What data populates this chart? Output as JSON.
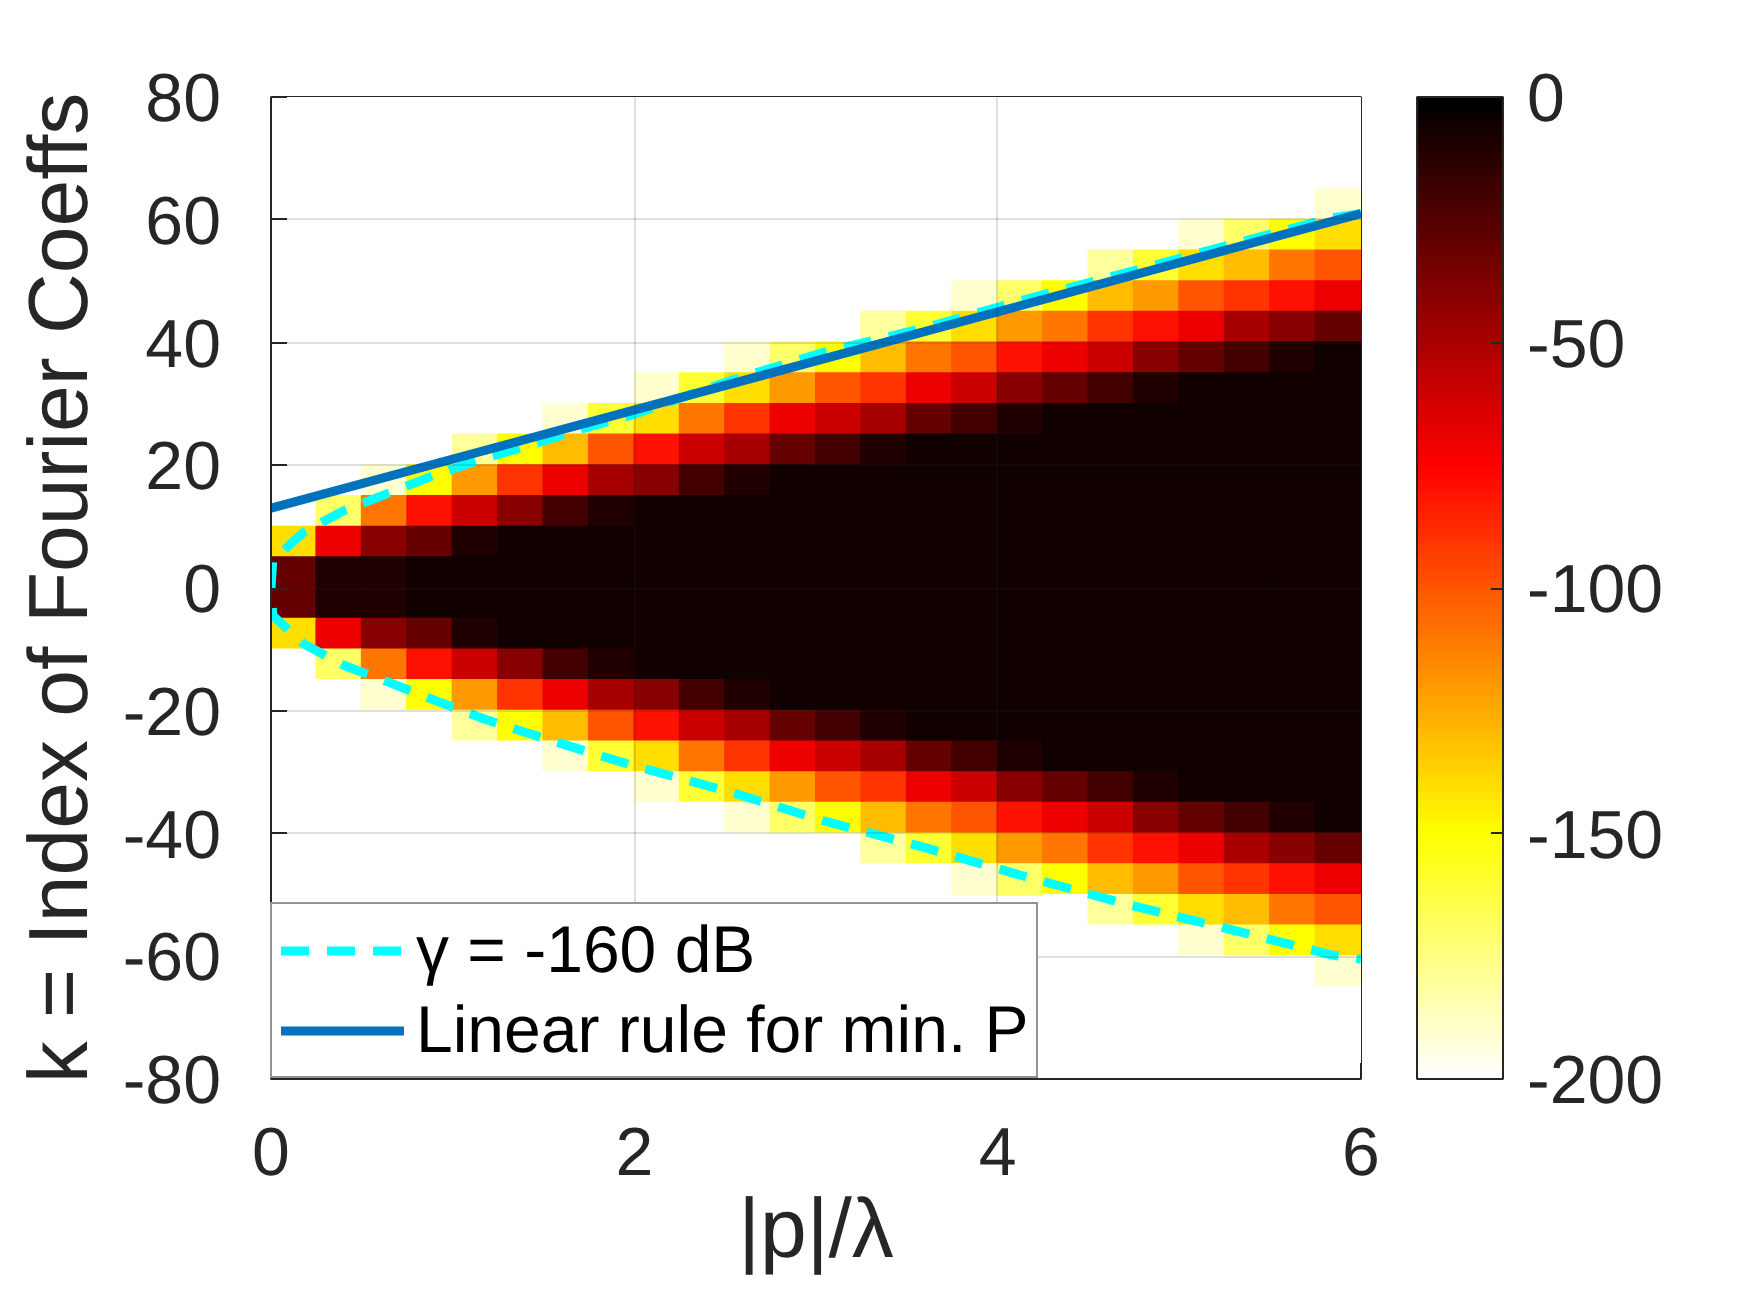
{
  "chart_data": {
    "type": "heatmap",
    "xlabel": "|p|/λ",
    "ylabel": "k = Index of Fourier Coeffs",
    "x": [
      0.125,
      0.375,
      0.625,
      0.875,
      1.125,
      1.375,
      1.625,
      1.875,
      2.125,
      2.375,
      2.625,
      2.875,
      3.125,
      3.375,
      3.625,
      3.875,
      4.125,
      4.375,
      4.625,
      4.875,
      5.125,
      5.375,
      5.625,
      5.875
    ],
    "cells": [
      [
        -200,
        -200,
        -200,
        -200,
        -200,
        -200,
        -200,
        -200,
        -200,
        -200,
        -200,
        -200,
        -200,
        -200,
        -200,
        -200,
        -200,
        -200,
        -200,
        -200,
        -200,
        -200,
        -200,
        -200
      ],
      [
        -200,
        -200,
        -200,
        -200,
        -200,
        -200,
        -200,
        -200,
        -200,
        -200,
        -200,
        -200,
        -200,
        -200,
        -200,
        -200,
        -200,
        -200,
        -200,
        -200,
        -200,
        -200,
        -200,
        -200
      ],
      [
        -200,
        -200,
        -200,
        -200,
        -200,
        -200,
        -200,
        -200,
        -200,
        -200,
        -200,
        -200,
        -200,
        -200,
        -200,
        -200,
        -200,
        -200,
        -200,
        -200,
        -200,
        -200,
        -200,
        -200
      ],
      [
        -200,
        -200,
        -200,
        -200,
        -200,
        -200,
        -200,
        -200,
        -200,
        -200,
        -200,
        -200,
        -200,
        -200,
        -200,
        -200,
        -200,
        -200,
        -200,
        -200,
        -200,
        -200,
        -200,
        -190
      ],
      [
        -200,
        -200,
        -200,
        -200,
        -200,
        -200,
        -200,
        -200,
        -200,
        -200,
        -200,
        -200,
        -200,
        -200,
        -200,
        -200,
        -200,
        -200,
        -200,
        -200,
        -190,
        -170,
        -150,
        -140
      ],
      [
        -200,
        -200,
        -200,
        -200,
        -200,
        -200,
        -200,
        -200,
        -200,
        -200,
        -200,
        -200,
        -200,
        -200,
        -200,
        -200,
        -200,
        -200,
        -180,
        -160,
        -140,
        -130,
        -110,
        -100
      ],
      [
        -200,
        -200,
        -200,
        -200,
        -200,
        -200,
        -200,
        -200,
        -200,
        -200,
        -200,
        -200,
        -200,
        -200,
        -200,
        -190,
        -170,
        -150,
        -130,
        -120,
        -100,
        -90,
        -80,
        -70
      ],
      [
        -200,
        -200,
        -200,
        -200,
        -200,
        -200,
        -200,
        -200,
        -200,
        -200,
        -200,
        -200,
        -200,
        -180,
        -160,
        -140,
        -120,
        -110,
        -90,
        -80,
        -70,
        -50,
        -40,
        -30
      ],
      [
        -200,
        -200,
        -200,
        -200,
        -200,
        -200,
        -200,
        -200,
        -200,
        -200,
        -190,
        -170,
        -150,
        -130,
        -110,
        -100,
        -80,
        -70,
        -60,
        -40,
        -30,
        -20,
        -10,
        -5
      ],
      [
        -200,
        -200,
        -200,
        -200,
        -200,
        -200,
        -200,
        -200,
        -190,
        -160,
        -140,
        -120,
        -100,
        -90,
        -70,
        -60,
        -40,
        -30,
        -20,
        -10,
        -5,
        -5,
        -5,
        -5
      ],
      [
        -200,
        -200,
        -200,
        -200,
        -200,
        -200,
        -190,
        -160,
        -140,
        -110,
        -90,
        -70,
        -60,
        -50,
        -30,
        -20,
        -10,
        -5,
        -5,
        -5,
        -5,
        -5,
        -5,
        -5
      ],
      [
        -200,
        -200,
        -200,
        -200,
        -180,
        -150,
        -130,
        -100,
        -80,
        -60,
        -50,
        -30,
        -20,
        -10,
        -5,
        -5,
        -5,
        -5,
        -5,
        -5,
        -5,
        -5,
        -5,
        -5
      ],
      [
        -200,
        -200,
        -190,
        -150,
        -120,
        -90,
        -70,
        -50,
        -40,
        -20,
        -10,
        -5,
        -5,
        -5,
        -5,
        -5,
        -5,
        -5,
        -5,
        -5,
        -5,
        -5,
        -5,
        -5
      ],
      [
        -200,
        -170,
        -110,
        -80,
        -60,
        -40,
        -20,
        -10,
        -5,
        -5,
        -5,
        -5,
        -5,
        -5,
        -5,
        -5,
        -5,
        -5,
        -5,
        -5,
        -5,
        -5,
        -5,
        -5
      ],
      [
        -140,
        -70,
        -40,
        -30,
        -10,
        -5,
        -5,
        -5,
        -5,
        -5,
        -5,
        -5,
        -5,
        -5,
        -5,
        -5,
        -5,
        -5,
        -5,
        -5,
        -5,
        -5,
        -5,
        -5
      ],
      [
        -30,
        -10,
        -10,
        -5,
        -5,
        -5,
        -5,
        -5,
        -5,
        -5,
        -5,
        -5,
        -5,
        -5,
        -5,
        -5,
        -5,
        -5,
        -5,
        -5,
        -5,
        -5,
        -5,
        -5
      ],
      [
        -30,
        -10,
        -10,
        -5,
        -5,
        -5,
        -5,
        -5,
        -5,
        -5,
        -5,
        -5,
        -5,
        -5,
        -5,
        -5,
        -5,
        -5,
        -5,
        -5,
        -5,
        -5,
        -5,
        -5
      ],
      [
        -140,
        -70,
        -40,
        -30,
        -10,
        -5,
        -5,
        -5,
        -5,
        -5,
        -5,
        -5,
        -5,
        -5,
        -5,
        -5,
        -5,
        -5,
        -5,
        -5,
        -5,
        -5,
        -5,
        -5
      ],
      [
        -200,
        -170,
        -110,
        -80,
        -60,
        -40,
        -20,
        -10,
        -5,
        -5,
        -5,
        -5,
        -5,
        -5,
        -5,
        -5,
        -5,
        -5,
        -5,
        -5,
        -5,
        -5,
        -5,
        -5
      ],
      [
        -200,
        -200,
        -190,
        -150,
        -120,
        -90,
        -70,
        -50,
        -40,
        -20,
        -10,
        -5,
        -5,
        -5,
        -5,
        -5,
        -5,
        -5,
        -5,
        -5,
        -5,
        -5,
        -5,
        -5
      ],
      [
        -200,
        -200,
        -200,
        -200,
        -180,
        -150,
        -130,
        -100,
        -80,
        -60,
        -50,
        -30,
        -20,
        -10,
        -5,
        -5,
        -5,
        -5,
        -5,
        -5,
        -5,
        -5,
        -5,
        -5
      ],
      [
        -200,
        -200,
        -200,
        -200,
        -200,
        -200,
        -190,
        -160,
        -140,
        -110,
        -90,
        -70,
        -60,
        -50,
        -30,
        -20,
        -10,
        -5,
        -5,
        -5,
        -5,
        -5,
        -5,
        -5
      ],
      [
        -200,
        -200,
        -200,
        -200,
        -200,
        -200,
        -200,
        -200,
        -190,
        -160,
        -140,
        -120,
        -100,
        -90,
        -70,
        -60,
        -40,
        -30,
        -20,
        -10,
        -5,
        -5,
        -5,
        -5
      ],
      [
        -200,
        -200,
        -200,
        -200,
        -200,
        -200,
        -200,
        -200,
        -200,
        -200,
        -190,
        -170,
        -150,
        -130,
        -110,
        -100,
        -80,
        -70,
        -60,
        -40,
        -30,
        -20,
        -10,
        -5
      ],
      [
        -200,
        -200,
        -200,
        -200,
        -200,
        -200,
        -200,
        -200,
        -200,
        -200,
        -200,
        -200,
        -200,
        -180,
        -160,
        -140,
        -120,
        -110,
        -90,
        -80,
        -70,
        -50,
        -40,
        -30
      ],
      [
        -200,
        -200,
        -200,
        -200,
        -200,
        -200,
        -200,
        -200,
        -200,
        -200,
        -200,
        -200,
        -200,
        -200,
        -200,
        -190,
        -170,
        -150,
        -130,
        -120,
        -100,
        -90,
        -80,
        -70
      ],
      [
        null,
        null,
        null,
        null,
        null,
        null,
        null,
        null,
        null,
        null,
        null,
        null,
        null,
        null,
        null,
        null,
        null,
        -200,
        -180,
        -160,
        -140,
        -130,
        -110,
        -100
      ],
      [
        null,
        null,
        null,
        null,
        null,
        null,
        null,
        null,
        null,
        null,
        null,
        null,
        null,
        null,
        null,
        null,
        null,
        -200,
        -200,
        -200,
        -190,
        -170,
        -150,
        -140
      ],
      [
        null,
        null,
        null,
        null,
        null,
        null,
        null,
        null,
        null,
        null,
        null,
        null,
        null,
        null,
        null,
        null,
        null,
        -200,
        -200,
        -200,
        -200,
        -200,
        -200,
        -190
      ],
      [
        null,
        null,
        null,
        null,
        null,
        null,
        null,
        null,
        null,
        null,
        null,
        null,
        null,
        null,
        null,
        null,
        null,
        -200,
        -200,
        -200,
        -200,
        -200,
        -200,
        -200
      ],
      [
        null,
        null,
        null,
        null,
        null,
        null,
        null,
        null,
        null,
        null,
        null,
        null,
        null,
        null,
        null,
        null,
        null,
        -200,
        -200,
        -200,
        -200,
        -200,
        -200,
        -200
      ],
      [
        null,
        null,
        null,
        null,
        null,
        null,
        null,
        null,
        null,
        null,
        null,
        null,
        null,
        null,
        null,
        null,
        null,
        -200,
        -200,
        -200,
        -200,
        -200,
        -200,
        -200
      ]
    ],
    "clim": [
      -200,
      0
    ],
    "cticks": [
      0,
      -50,
      -100,
      -150,
      -200
    ],
    "xlim": [
      0,
      6
    ],
    "ylim": [
      -80,
      80
    ],
    "xticks": [
      0,
      2,
      4,
      6
    ],
    "yticks": [
      -80,
      -60,
      -40,
      -20,
      0,
      20,
      40,
      60,
      80
    ],
    "grid": true,
    "legend": "bottom left",
    "series": [
      {
        "name": "γ = -160 dB",
        "type": "line",
        "color": "#00ffff",
        "line_style": "dashed",
        "x": [
          6,
          5.84,
          5.29,
          4.7,
          4.15,
          3.6,
          3.03,
          2.54,
          2,
          1.72,
          1.44,
          1.17,
          0.91,
          0.66,
          0.4,
          0.18,
          0.01,
          0,
          0.01,
          0.18,
          0.4,
          0.66,
          0.91,
          1.17,
          1.42,
          1.7,
          1.99,
          2.5,
          3.05,
          3.6,
          4.15,
          4.72,
          5.29,
          5.84,
          6
        ],
        "values": [
          61,
          60.3,
          56,
          51.3,
          47,
          42.4,
          38.3,
          33.9,
          28.3,
          26,
          23.4,
          21.1,
          18.5,
          15.6,
          12.6,
          9.1,
          4.5,
          0,
          -4.5,
          -9.1,
          -12.6,
          -15.5,
          -18.4,
          -21.3,
          -23.7,
          -26.3,
          -28.9,
          -33,
          -38,
          -42.3,
          -47,
          -51.6,
          -55.7,
          -59.8,
          -60.5
        ]
      },
      {
        "name": "Linear rule for min. P",
        "type": "line",
        "color": "#0072bd",
        "line_style": "solid",
        "x": [
          0,
          6
        ],
        "values": [
          13,
          61
        ]
      }
    ]
  }
}
